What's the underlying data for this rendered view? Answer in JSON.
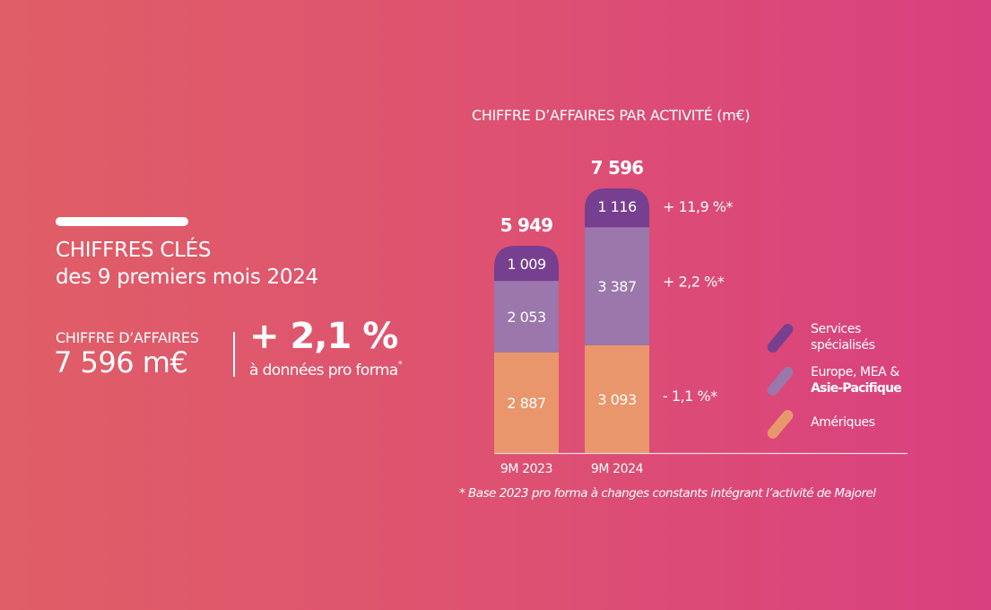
{
  "key_figures": {
    "title_line1": "CHIFFRES CLÉS",
    "title_line2": "des 9 premiers mois 2024",
    "revenue_label": "CHIFFRE D’AFFAIRES",
    "revenue_value": "7 596 m€",
    "growth_value": "+ 2,1 %",
    "growth_note": "à données pro forma",
    "growth_note_mark": "*"
  },
  "colors": {
    "services_specialises": "#773f8f",
    "europe_mea_apac": "#9b77ac",
    "ameriques": "#e9966c",
    "text": "#ffffff"
  },
  "chart_data": {
    "type": "bar",
    "stacked": true,
    "title": "CHIFFRE D’AFFAIRES PAR ACTIVITÉ (m€)",
    "categories": [
      "9M 2023",
      "9M 2024"
    ],
    "totals": [
      5949,
      7596
    ],
    "totals_labels": [
      "5 949",
      "7 596"
    ],
    "series": [
      {
        "name": "Amériques",
        "values": [
          2887,
          3093
        ],
        "labels": [
          "2 887",
          "3 093"
        ],
        "change": "- 1,1 %*",
        "color": "#e9966c"
      },
      {
        "name": "Europe, MEA & Asie-Pacifique",
        "values": [
          2053,
          3387
        ],
        "labels": [
          "2 053",
          "3 387"
        ],
        "change": "+ 2,2 %*",
        "color": "#9b77ac"
      },
      {
        "name": "Services spécialisés",
        "values": [
          1009,
          1116
        ],
        "labels": [
          "1 009",
          "1 116"
        ],
        "change": "+ 11,9 %*",
        "color": "#773f8f"
      }
    ],
    "xlabel": "",
    "ylabel": "",
    "ylim": [
      0,
      7596
    ],
    "grid": false,
    "legend_position": "right"
  },
  "legend": {
    "items": [
      {
        "line1": "Services",
        "line2": "spécialisés",
        "color": "#773f8f"
      },
      {
        "line1": "Europe, MEA &",
        "line2": "Asie-Pacifique",
        "color": "#9b77ac"
      },
      {
        "line1": "Amériques",
        "line2": "",
        "color": "#e9966c"
      }
    ]
  },
  "footnote": "* Base 2023 pro forma à changes constants intégrant l’activité de Majorel"
}
